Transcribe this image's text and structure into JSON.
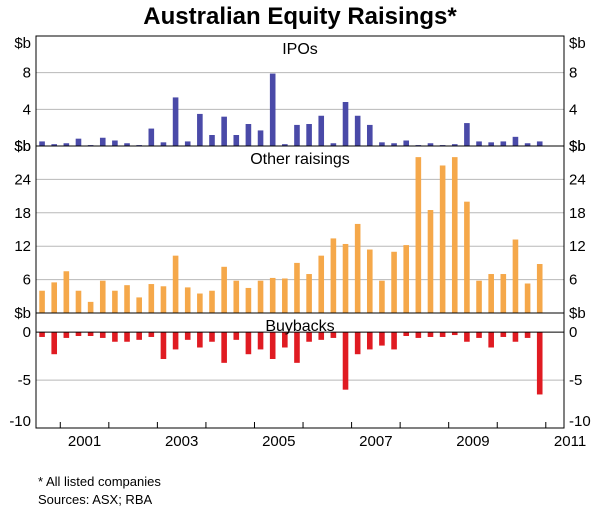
{
  "chart_data": {
    "type": "bar",
    "title": "Australian Equity Raisings*",
    "unit_label": "$b",
    "x_tick_labels": [
      "2001",
      "2003",
      "2005",
      "2007",
      "2009",
      "2011"
    ],
    "x_tick_years": [
      2001,
      2003,
      2005,
      2007,
      2009,
      2011
    ],
    "x_start": 2000.5,
    "x_end": 2011.375,
    "quarters_start": 2000.5,
    "footnotes": [
      "*   All listed companies",
      "Sources: ASX; RBA"
    ],
    "panels": [
      {
        "name": "IPOs",
        "title": "IPOs",
        "color": "#4a4aa8",
        "ylim": [
          0,
          12
        ],
        "ticks": [
          {
            "value": 0,
            "label": "$b"
          },
          {
            "value": 4,
            "label": "4"
          },
          {
            "value": 8,
            "label": "8"
          },
          {
            "value": 12,
            "label": "$b"
          }
        ],
        "values": [
          0.5,
          0.2,
          0.3,
          0.8,
          0.1,
          0.9,
          0.6,
          0.3,
          0.1,
          1.9,
          0.4,
          5.3,
          0.5,
          3.5,
          1.2,
          3.2,
          1.2,
          2.4,
          1.7,
          7.9,
          0.2,
          2.3,
          2.4,
          3.3,
          0.3,
          4.8,
          3.3,
          2.3,
          0.4,
          0.3,
          0.6,
          0.1,
          0.3,
          0.1,
          0.2,
          2.5,
          0.5,
          0.4,
          0.5,
          1.0,
          0.3,
          0.5
        ]
      },
      {
        "name": "Other raisings",
        "title": "Other raisings",
        "color": "#f5a84a",
        "ylim": [
          0,
          30
        ],
        "ticks": [
          {
            "value": 0,
            "label": "$b"
          },
          {
            "value": 6,
            "label": "6"
          },
          {
            "value": 12,
            "label": "12"
          },
          {
            "value": 18,
            "label": "18"
          },
          {
            "value": 24,
            "label": "24"
          },
          {
            "value": 30,
            "label": "$b"
          }
        ],
        "values": [
          4.0,
          5.5,
          7.5,
          4.0,
          2.0,
          5.8,
          4.0,
          5.0,
          2.8,
          5.2,
          4.8,
          10.3,
          4.6,
          3.5,
          4.0,
          8.3,
          5.8,
          4.5,
          5.8,
          6.3,
          6.2,
          9.0,
          7.0,
          10.3,
          13.4,
          12.4,
          16.0,
          11.4,
          5.8,
          11.0,
          12.2,
          28.0,
          18.5,
          26.5,
          28.0,
          20.0,
          5.8,
          7.0,
          7.0,
          13.2,
          5.3,
          8.8
        ]
      },
      {
        "name": "Buybacks",
        "title": "Buybacks",
        "color": "#e01b22",
        "ylim": [
          -10,
          2
        ],
        "ticks": [
          {
            "value": 0,
            "label": "0"
          },
          {
            "value": -5,
            "label": "-5"
          },
          {
            "value": -10,
            "label": "-10"
          }
        ],
        "values": [
          -0.5,
          -2.3,
          -0.6,
          -0.4,
          -0.4,
          -0.6,
          -1.0,
          -1.0,
          -0.8,
          -0.5,
          -2.8,
          -1.8,
          -0.8,
          -1.6,
          -1.0,
          -3.2,
          -0.8,
          -2.3,
          -1.8,
          -2.8,
          -1.6,
          -3.2,
          -1.0,
          -0.8,
          -0.6,
          -6.0,
          -2.3,
          -1.8,
          -1.4,
          -1.8,
          -0.4,
          -0.6,
          -0.5,
          -0.5,
          -0.3,
          -1.0,
          -0.6,
          -1.6,
          -0.5,
          -1.0,
          -0.6,
          -6.5
        ]
      }
    ]
  }
}
